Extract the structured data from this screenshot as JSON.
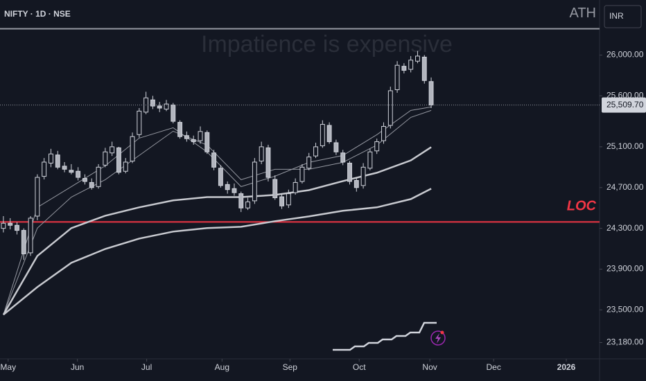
{
  "chart_data": {
    "type": "candlestick",
    "title": "NIFTY · 1D · NSE",
    "watermark": "Impatience is expensive",
    "currency": "INR",
    "ylim": [
      23020,
      26540
    ],
    "yticks": [
      {
        "value": 23180,
        "label": "23,180.00"
      },
      {
        "value": 23500,
        "label": "23,500.00"
      },
      {
        "value": 23900,
        "label": "23,900.00"
      },
      {
        "value": 24300,
        "label": "24,300.00"
      },
      {
        "value": 24700,
        "label": "24,700.00"
      },
      {
        "value": 25100,
        "label": "25,100.00"
      },
      {
        "value": 25600,
        "label": "25,600.00"
      },
      {
        "value": 26000,
        "label": "26,000.00"
      }
    ],
    "xlim": [
      -0.5,
      87.8
    ],
    "xticks": [
      {
        "value": 0.7,
        "label": "May"
      },
      {
        "value": 10.9,
        "label": "Jun"
      },
      {
        "value": 21.1,
        "label": "Jul"
      },
      {
        "value": 32.2,
        "label": "Aug"
      },
      {
        "value": 42.2,
        "label": "Sep"
      },
      {
        "value": 52.4,
        "label": "Oct"
      },
      {
        "value": 62.8,
        "label": "Nov"
      },
      {
        "value": 72.2,
        "label": "Dec"
      },
      {
        "value": 82.9,
        "label": "2026"
      }
    ],
    "last_price": {
      "value": 25509.7,
      "label": "25,509.70"
    },
    "levels": [
      {
        "name": "ATH",
        "value": 26258,
        "color": "#9598a1"
      },
      {
        "name": "LOC",
        "value": 24363,
        "color": "#f23645"
      }
    ],
    "up_color": "#131722",
    "down_color": "#b2b5be",
    "outline_color": "#d1d4dc",
    "open": [
      24300,
      24350,
      24330,
      24280,
      24060,
      24420,
      24810,
      24940,
      25020,
      24910,
      24870,
      24860,
      24790,
      24750,
      24710,
      24920,
      25040,
      25090,
      24860,
      24960,
      25220,
      25440,
      25560,
      25500,
      25470,
      25510,
      25340,
      25210,
      25170,
      25160,
      25240,
      25040,
      24890,
      24730,
      24690,
      24640,
      24500,
      24570,
      24960,
      25090,
      24780,
      24610,
      24530,
      24650,
      24760,
      24890,
      25010,
      25110,
      25310,
      25140,
      25040,
      24940,
      24770,
      24720,
      24890,
      25060,
      25160,
      25310,
      25660,
      25890,
      25860,
      25940,
      25980,
      25740
    ],
    "high": [
      24420,
      24400,
      24360,
      24300,
      24420,
      24830,
      24990,
      25080,
      25060,
      24950,
      24930,
      24900,
      24830,
      24790,
      24930,
      25090,
      25150,
      25100,
      24990,
      25240,
      25480,
      25640,
      25600,
      25540,
      25560,
      25530,
      25360,
      25250,
      25210,
      25300,
      25260,
      25070,
      24920,
      24760,
      24740,
      24660,
      24600,
      24990,
      25150,
      25120,
      24820,
      24640,
      24680,
      24790,
      24930,
      25040,
      25140,
      25360,
      25340,
      25170,
      25070,
      24960,
      24790,
      24940,
      25080,
      25180,
      25340,
      25690,
      25940,
      25920,
      25990,
      26040,
      26000,
      25780
    ],
    "low": [
      24260,
      24290,
      24240,
      23990,
      24030,
      24380,
      24780,
      24900,
      24880,
      24850,
      24830,
      24770,
      24730,
      24680,
      24690,
      24900,
      25010,
      24830,
      24840,
      24940,
      25190,
      25420,
      25470,
      25440,
      25450,
      25330,
      25180,
      25150,
      25120,
      25130,
      25030,
      24870,
      24700,
      24640,
      24620,
      24460,
      24480,
      24540,
      24930,
      24760,
      24580,
      24490,
      24500,
      24630,
      24740,
      24870,
      24990,
      25090,
      25130,
      25020,
      24920,
      24730,
      24660,
      24690,
      24870,
      25030,
      25130,
      25280,
      25630,
      25820,
      25830,
      25920,
      25720,
      25480
    ],
    "close": [
      24350,
      24330,
      24280,
      24050,
      24400,
      24800,
      24950,
      25030,
      24900,
      24880,
      24850,
      24800,
      24760,
      24700,
      24900,
      25050,
      25100,
      24850,
      24950,
      25200,
      25450,
      25580,
      25500,
      25480,
      25520,
      25350,
      25200,
      25180,
      25150,
      25250,
      25050,
      24900,
      24720,
      24680,
      24650,
      24500,
      24560,
      24950,
      25100,
      24800,
      24600,
      24520,
      24640,
      24750,
      24900,
      25000,
      25100,
      25320,
      25150,
      25050,
      24950,
      24760,
      24700,
      24900,
      25050,
      25150,
      25300,
      25650,
      25900,
      25850,
      25950,
      25990,
      25750,
      25509.7
    ],
    "lines": [
      {
        "color": "#9598a1",
        "width": 1,
        "x": [
          0,
          5,
          10,
          15,
          20,
          25,
          30,
          35,
          40,
          45,
          50,
          55,
          60,
          63
        ],
        "values": [
          23453,
          24506,
          24709,
          24913,
          25185,
          25287,
          25049,
          24709,
          24811,
          24947,
          25015,
          25219,
          25457,
          25491
        ]
      },
      {
        "color": "#9598a1",
        "width": 1,
        "x": [
          0,
          5,
          10,
          15,
          20,
          25,
          30,
          35,
          40,
          45,
          50,
          55,
          60,
          63
        ],
        "values": [
          23453,
          24302,
          24607,
          24777,
          25015,
          25253,
          25117,
          24777,
          24879,
          24879,
          24947,
          25117,
          25389,
          25457
        ]
      },
      {
        "color": "#c8cad0",
        "width": 2.5,
        "x": [
          0,
          5,
          10,
          15,
          20,
          25,
          30,
          35,
          40,
          45,
          50,
          55,
          60,
          63
        ],
        "values": [
          23453,
          24030,
          24302,
          24424,
          24506,
          24574,
          24607,
          24607,
          24628,
          24675,
          24764,
          24845,
          24967,
          25097
        ]
      },
      {
        "color": "#c8cad0",
        "width": 2.5,
        "x": [
          0,
          5,
          10,
          15,
          20,
          25,
          30,
          35,
          40,
          45,
          50,
          55,
          60,
          63
        ],
        "values": [
          23453,
          23724,
          23962,
          24098,
          24200,
          24268,
          24302,
          24315,
          24370,
          24417,
          24472,
          24506,
          24587,
          24689
        ]
      }
    ]
  }
}
